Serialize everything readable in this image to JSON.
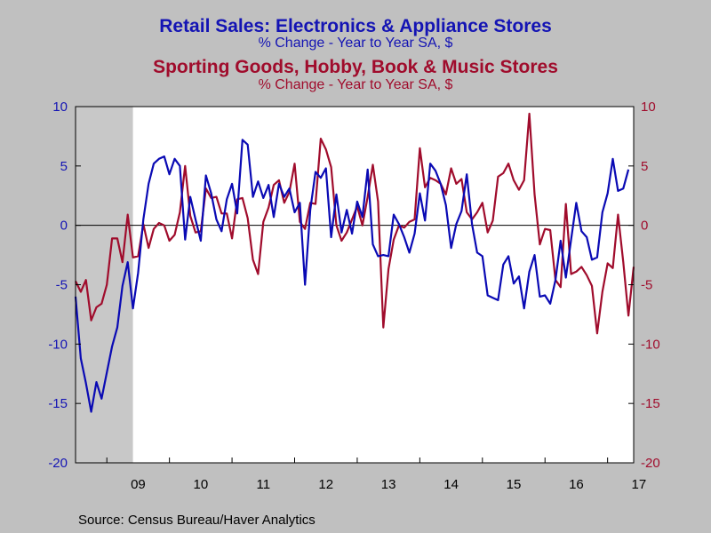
{
  "title_primary": "Retail Sales: Electronics & Appliance Stores",
  "subtitle_primary": "% Change - Year to Year    SA, $",
  "title_secondary": "Sporting Goods, Hobby, Book & Music Stores",
  "subtitle_secondary": "% Change - Year to Year    SA, $",
  "source": "Source:  Census Bureau/Haver Analytics",
  "colors": {
    "electronics": "#0A0AB4",
    "sporting": "#A00C2C",
    "plot_bg": "#FFFFFF",
    "page_bg": "#C0C0C0",
    "recession": "#C8C8C8"
  },
  "chart_data": {
    "type": "line",
    "x_start": "2008-07",
    "frequency": "monthly",
    "x_tick_labels": [
      "09",
      "10",
      "11",
      "12",
      "13",
      "14",
      "15",
      "16",
      "17"
    ],
    "ylim": [
      -20,
      10
    ],
    "y_ticks": [
      -20,
      -15,
      -10,
      -5,
      0,
      5,
      10
    ],
    "y2lim": [
      -20,
      10
    ],
    "y2_ticks": [
      -20,
      -15,
      -10,
      -5,
      0,
      5,
      10
    ],
    "zero_line": true,
    "grid": false,
    "recession_shading": {
      "start": "2008-07",
      "end": "2009-06"
    },
    "series": [
      {
        "axis": "left",
        "values": [
          -6.0,
          -11.2,
          -13.3,
          -15.7,
          -13.2,
          -14.6,
          -12.4,
          -10.2,
          -8.6,
          -5.1,
          -3.1,
          -7.0,
          -4.0,
          0.5,
          3.5,
          5.2,
          5.6,
          5.8,
          4.3,
          5.6,
          5.0,
          -1.2,
          2.4,
          0.5,
          -1.3,
          4.2,
          2.7,
          0.5,
          -0.5,
          2.2,
          3.5,
          1.0,
          7.2,
          6.8,
          2.4,
          3.7,
          2.3,
          3.4,
          0.7,
          3.5,
          2.4,
          3.1,
          1.1,
          1.9,
          -5.0,
          1.3,
          4.5,
          4.0,
          4.8,
          -1.0,
          2.6,
          -0.6,
          1.3,
          -0.7,
          2.0,
          0.7,
          4.7,
          -1.6,
          -2.6,
          -2.5,
          -2.6,
          0.9,
          0.1,
          -1.0,
          -2.3,
          -0.7,
          2.7,
          0.4,
          5.2,
          4.6,
          3.5,
          1.7,
          -1.9,
          0.1,
          1.2,
          4.3,
          0.1,
          -2.3,
          -2.6,
          -5.9,
          -6.1,
          -6.3,
          -3.3,
          -2.6,
          -4.9,
          -4.3,
          -7.0,
          -3.9,
          -2.5,
          -6.0,
          -5.9,
          -6.6,
          -4.6,
          -1.3,
          -4.4,
          -1.2,
          1.9,
          -0.5,
          -1.0,
          -2.9,
          -2.7,
          1.1,
          2.7,
          5.6,
          2.9,
          3.1,
          4.7
        ]
      },
      {
        "axis": "right",
        "values": [
          -4.7,
          -5.6,
          -4.6,
          -8.0,
          -6.9,
          -6.6,
          -5.0,
          -1.1,
          -1.1,
          -3.1,
          0.9,
          -2.7,
          -2.6,
          0.1,
          -1.9,
          -0.3,
          0.2,
          0.0,
          -1.3,
          -0.8,
          1.1,
          5.0,
          0.8,
          -0.6,
          -0.5,
          3.1,
          2.3,
          2.4,
          1.0,
          1.0,
          -1.1,
          2.2,
          2.3,
          0.6,
          -2.9,
          -4.1,
          0.3,
          1.5,
          3.4,
          3.8,
          1.9,
          2.8,
          5.2,
          0.3,
          -0.3,
          1.9,
          1.8,
          7.3,
          6.4,
          4.9,
          0.0,
          -1.3,
          -0.6,
          0.5,
          1.6,
          0.0,
          2.4,
          5.1,
          2.0,
          -8.6,
          -3.7,
          -1.2,
          0.0,
          -0.2,
          0.3,
          0.5,
          6.5,
          3.2,
          4.0,
          3.8,
          3.5,
          2.6,
          4.8,
          3.5,
          3.9,
          1.1,
          0.5,
          1.1,
          1.9,
          -0.6,
          0.4,
          4.1,
          4.4,
          5.2,
          3.8,
          3.0,
          3.8,
          9.4,
          2.6,
          -1.6,
          -0.3,
          -0.4,
          -4.6,
          -5.2,
          1.8,
          -4.1,
          -3.9,
          -3.5,
          -4.2,
          -5.1,
          -9.1,
          -5.6,
          -3.2,
          -3.6,
          0.9,
          -3.1,
          -7.6,
          -3.5
        ]
      }
    ]
  }
}
